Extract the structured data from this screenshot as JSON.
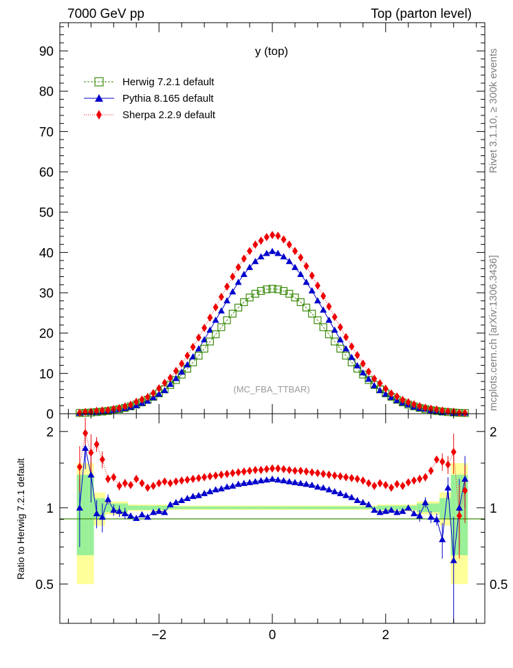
{
  "header": {
    "energy": "7000 GeV pp",
    "process": "Top (parton level)"
  },
  "side_labels": {
    "rivet": "Rivet 3.1.10, ≥ 300k events",
    "source": "mcplots.cern.ch [arXiv:1306.3436]"
  },
  "colors": {
    "herwig": "#3a8a0a",
    "pythia": "#0000cc",
    "sherpa": "#ee0000",
    "band_green": "#98f098",
    "band_yellow": "#ffff99"
  },
  "chart_data": [
    {
      "type": "scatter",
      "title": "y (top)",
      "watermark": "(MC_FBA_TTBAR)",
      "xlim": [
        -3.75,
        3.75
      ],
      "ylim": [
        0,
        97
      ],
      "yticks": [
        "0",
        "10",
        "20",
        "30",
        "40",
        "50",
        "60",
        "70",
        "80",
        "90"
      ],
      "legend_position": "top-left",
      "series": [
        {
          "name": "Herwig 7.2.1 default",
          "marker": "open-square",
          "peak": 31
        },
        {
          "name": "Pythia 8.165 default",
          "marker": "triangle",
          "peak": 39
        },
        {
          "name": "Sherpa 2.2.9 default",
          "marker": "diamond",
          "peak": 43
        }
      ]
    },
    {
      "type": "scatter",
      "ylabel": "Ratio to Herwig 7.2.1 default",
      "xlim": [
        -3.75,
        3.75
      ],
      "ylim": [
        0.35,
        2.35
      ],
      "yticks": [
        "0.5",
        "1",
        "2"
      ],
      "xticks": [
        "−2",
        "0",
        "2"
      ],
      "x": [
        -3.4,
        -3.3,
        -3.2,
        -3.1,
        -3.0,
        -2.9,
        -2.8,
        -2.7,
        -2.6,
        -2.5,
        -2.4,
        -2.3,
        -2.2,
        -2.1,
        -2.0,
        -1.9,
        -1.8,
        -1.7,
        -1.6,
        -1.5,
        -1.4,
        -1.3,
        -1.2,
        -1.1,
        -1.0,
        -0.9,
        -0.8,
        -0.7,
        -0.6,
        -0.5,
        -0.4,
        -0.3,
        -0.2,
        -0.1,
        0.0,
        0.1,
        0.2,
        0.3,
        0.4,
        0.5,
        0.6,
        0.7,
        0.8,
        0.9,
        1.0,
        1.1,
        1.2,
        1.3,
        1.4,
        1.5,
        1.6,
        1.7,
        1.8,
        1.9,
        2.0,
        2.1,
        2.2,
        2.3,
        2.4,
        2.5,
        2.6,
        2.7,
        2.8,
        2.9,
        3.0,
        3.1,
        3.2,
        3.3,
        3.4
      ],
      "series": [
        {
          "name": "Pythia 8.165 default",
          "values": [
            1.0,
            1.72,
            1.35,
            0.95,
            0.92,
            1.08,
            0.98,
            0.97,
            0.95,
            0.93,
            0.91,
            0.94,
            0.92,
            0.96,
            0.97,
            0.96,
            1.03,
            1.05,
            1.07,
            1.09,
            1.11,
            1.12,
            1.14,
            1.16,
            1.18,
            1.19,
            1.21,
            1.22,
            1.24,
            1.25,
            1.26,
            1.27,
            1.28,
            1.29,
            1.3,
            1.29,
            1.28,
            1.27,
            1.26,
            1.25,
            1.24,
            1.23,
            1.21,
            1.2,
            1.18,
            1.16,
            1.14,
            1.12,
            1.1,
            1.07,
            1.05,
            1.03,
            0.98,
            0.96,
            0.97,
            0.98,
            0.96,
            0.97,
            1.0,
            0.95,
            0.93,
            1.05,
            0.92,
            0.9,
            0.75,
            1.2,
            0.62,
            1.0,
            1.3
          ]
        },
        {
          "name": "Sherpa 2.2.9 default",
          "values": [
            1.45,
            1.97,
            1.65,
            1.78,
            1.55,
            1.3,
            1.32,
            1.22,
            1.25,
            1.23,
            1.3,
            1.25,
            1.2,
            1.22,
            1.25,
            1.27,
            1.25,
            1.27,
            1.28,
            1.29,
            1.3,
            1.31,
            1.32,
            1.33,
            1.34,
            1.35,
            1.36,
            1.37,
            1.38,
            1.39,
            1.4,
            1.41,
            1.41,
            1.42,
            1.43,
            1.43,
            1.42,
            1.41,
            1.4,
            1.4,
            1.39,
            1.38,
            1.37,
            1.36,
            1.35,
            1.34,
            1.33,
            1.32,
            1.31,
            1.3,
            1.28,
            1.25,
            1.22,
            1.25,
            1.23,
            1.2,
            1.24,
            1.22,
            1.26,
            1.28,
            1.3,
            1.32,
            1.4,
            1.55,
            1.52,
            1.48,
            1.66,
            0.93,
            1.17
          ]
        }
      ]
    }
  ]
}
